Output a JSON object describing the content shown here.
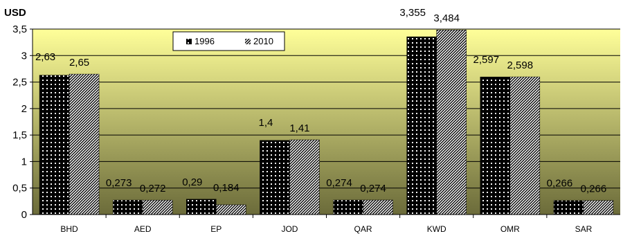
{
  "chart_data": {
    "type": "bar",
    "ylabel": "USD",
    "ylim": [
      0,
      3.5
    ],
    "yticks": [
      "0",
      "0,5",
      "1",
      "1,5",
      "2",
      "2,5",
      "3",
      "3,5"
    ],
    "categories": [
      "BHD",
      "AED",
      "EP",
      "JOD",
      "QAR",
      "KWD",
      "OMR",
      "SAR"
    ],
    "series": [
      {
        "name": "1996",
        "pattern": "dots",
        "values": [
          2.63,
          0.273,
          0.29,
          1.4,
          0.274,
          3.355,
          2.597,
          0.266
        ],
        "labels": [
          "2,63",
          "0,273",
          "0,29",
          "1,4",
          "0,274",
          "3,355",
          "2,597",
          "0,266"
        ]
      },
      {
        "name": "2010",
        "pattern": "diagonal",
        "values": [
          2.65,
          0.272,
          0.184,
          1.41,
          0.274,
          3.484,
          2.598,
          0.266
        ],
        "labels": [
          "2,65",
          "0,272",
          "0,184",
          "1,41",
          "0,274",
          "3,484",
          "2,598",
          "0,266"
        ]
      }
    ],
    "grid": true,
    "legend": "top-center",
    "colors": {
      "plot_top": "#ffff99",
      "plot_bottom": "#6b6b3a",
      "bar_fill": "#000000",
      "bar_pattern": "#ffffff"
    }
  }
}
